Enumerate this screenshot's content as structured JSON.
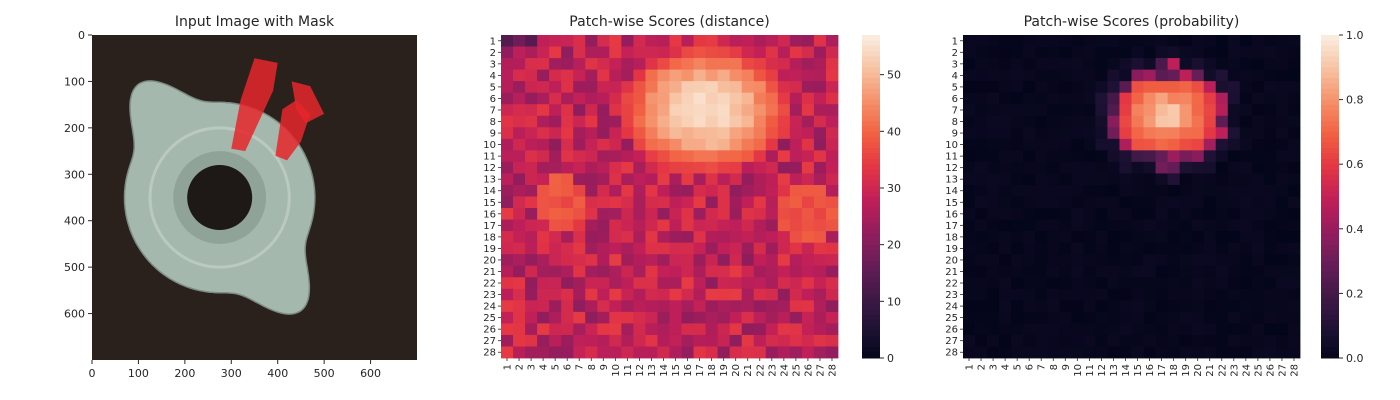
{
  "chart_data": [
    {
      "type": "image",
      "title": "Input Image with Mask",
      "xlim": [
        0,
        700
      ],
      "ylim": [
        700,
        0
      ],
      "x_ticks": [
        0,
        100,
        200,
        300,
        400,
        500,
        600
      ],
      "y_ticks": [
        0,
        100,
        200,
        300,
        400,
        500,
        600
      ],
      "image": {
        "width": 700,
        "height": 700,
        "background_color": "#2a211c",
        "object": "metal tee nut with four flanges and a center hole",
        "object_color": "#a5b8ae",
        "mask_color": "#e6262b",
        "mask_regions": [
          {
            "points": [
              [
                350,
                50
              ],
              [
                400,
                60
              ],
              [
                390,
                120
              ],
              [
                330,
                250
              ],
              [
                300,
                245
              ],
              [
                320,
                140
              ]
            ]
          },
          {
            "points": [
              [
                410,
                160
              ],
              [
                440,
                140
              ],
              [
                470,
                170
              ],
              [
                450,
                230
              ],
              [
                420,
                270
              ],
              [
                395,
                260
              ]
            ]
          },
          {
            "points": [
              [
                430,
                100
              ],
              [
                470,
                110
              ],
              [
                500,
                170
              ],
              [
                460,
                190
              ],
              [
                440,
                160
              ]
            ]
          }
        ],
        "hole": {
          "cx": 275,
          "cy": 350,
          "r": 70
        }
      }
    },
    {
      "type": "heatmap",
      "title": "Patch-wise Scores (distance)",
      "rows": 28,
      "cols": 28,
      "x_ticks": [
        "1",
        "2",
        "3",
        "4",
        "5",
        "6",
        "7",
        "8",
        "9",
        "10",
        "11",
        "12",
        "13",
        "14",
        "15",
        "16",
        "17",
        "18",
        "19",
        "20",
        "21",
        "22",
        "23",
        "24",
        "25",
        "26",
        "27",
        "28"
      ],
      "y_ticks": [
        "1",
        "2",
        "3",
        "4",
        "5",
        "6",
        "7",
        "8",
        "9",
        "10",
        "11",
        "12",
        "13",
        "14",
        "15",
        "16",
        "17",
        "18",
        "19",
        "20",
        "21",
        "22",
        "23",
        "24",
        "25",
        "26",
        "27",
        "28"
      ],
      "colormap": "rocket",
      "vmin": 0,
      "vmax": 57,
      "colorbar_ticks": [
        0,
        10,
        20,
        30,
        40,
        50
      ],
      "hot_region": {
        "center_row": 6,
        "center_col": 16.5,
        "radius_rows": 4.0,
        "radius_cols": 5.0,
        "peak": 57
      },
      "background_range": [
        22,
        35
      ]
    },
    {
      "type": "heatmap",
      "title": "Patch-wise Scores (probability)",
      "rows": 28,
      "cols": 28,
      "x_ticks": [
        "1",
        "2",
        "3",
        "4",
        "5",
        "6",
        "7",
        "8",
        "9",
        "10",
        "11",
        "12",
        "13",
        "14",
        "15",
        "16",
        "17",
        "18",
        "19",
        "20",
        "21",
        "22",
        "23",
        "24",
        "25",
        "26",
        "27",
        "28"
      ],
      "y_ticks": [
        "1",
        "2",
        "3",
        "4",
        "5",
        "6",
        "7",
        "8",
        "9",
        "10",
        "11",
        "12",
        "13",
        "14",
        "15",
        "16",
        "17",
        "18",
        "19",
        "20",
        "21",
        "22",
        "23",
        "24",
        "25",
        "26",
        "27",
        "28"
      ],
      "colormap": "rocket",
      "vmin": 0.0,
      "vmax": 1.0,
      "colorbar_ticks": [
        "0.0",
        "0.2",
        "0.4",
        "0.6",
        "0.8",
        "1.0"
      ],
      "hot_region": {
        "center_row": 6.5,
        "center_col": 16.5,
        "radius_rows": 3.5,
        "radius_cols": 4.0,
        "peak": 1.0
      }
    }
  ]
}
